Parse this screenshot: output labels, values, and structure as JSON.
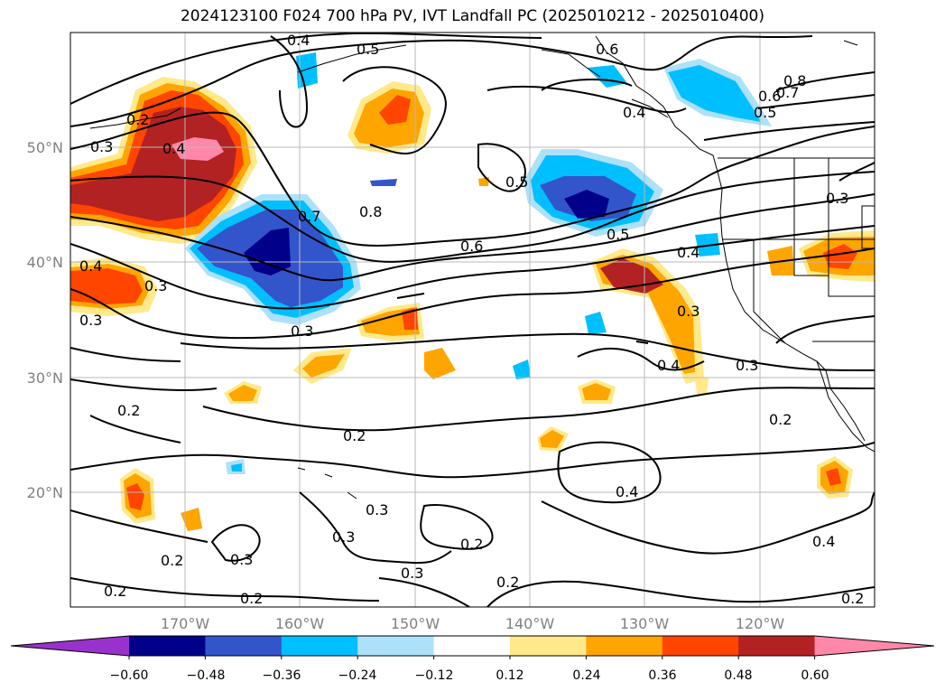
{
  "title": "2024123100 F024 700 hPa PV, IVT Landfall PC (2025010212 - 2025010400)",
  "lat_labels": [
    "50°N",
    "40°N",
    "30°N",
    "20°N"
  ],
  "lon_labels": [
    "170°W",
    "160°W",
    "150°W",
    "140°W",
    "130°W",
    "120°W"
  ],
  "colorbar": {
    "tick_labels": [
      "−0.60",
      "−0.48",
      "−0.36",
      "−0.24",
      "−0.12",
      "0.12",
      "0.24",
      "0.36",
      "0.48",
      "0.60"
    ],
    "colors": [
      "#9932CC",
      "#00008B",
      "#3355CC",
      "#00BFFF",
      "#ADE1FA",
      "#FFFFFF",
      "#FFE98A",
      "#FFA500",
      "#FF4500",
      "#B22222",
      "#FF88AA"
    ]
  },
  "contour_labels": [
    "0.4",
    "0.5",
    "0.6",
    "0.2",
    "0.3",
    "0.4",
    "0.3",
    "0.3",
    "0.7",
    "0.8",
    "0.6",
    "0.5",
    "0.3",
    "0.2",
    "0.2",
    "0.3",
    "0.3",
    "0.2",
    "0.3",
    "0.2",
    "0.2",
    "0.2",
    "0.2",
    "0.4",
    "0.4",
    "0.3",
    "0.3",
    "0.4",
    "0.3",
    "0.2",
    "0.4",
    "0.2",
    "0.8",
    "0.7",
    "0.6",
    "0.5",
    "0.4",
    "0.3",
    "0.4",
    "0.5"
  ]
}
